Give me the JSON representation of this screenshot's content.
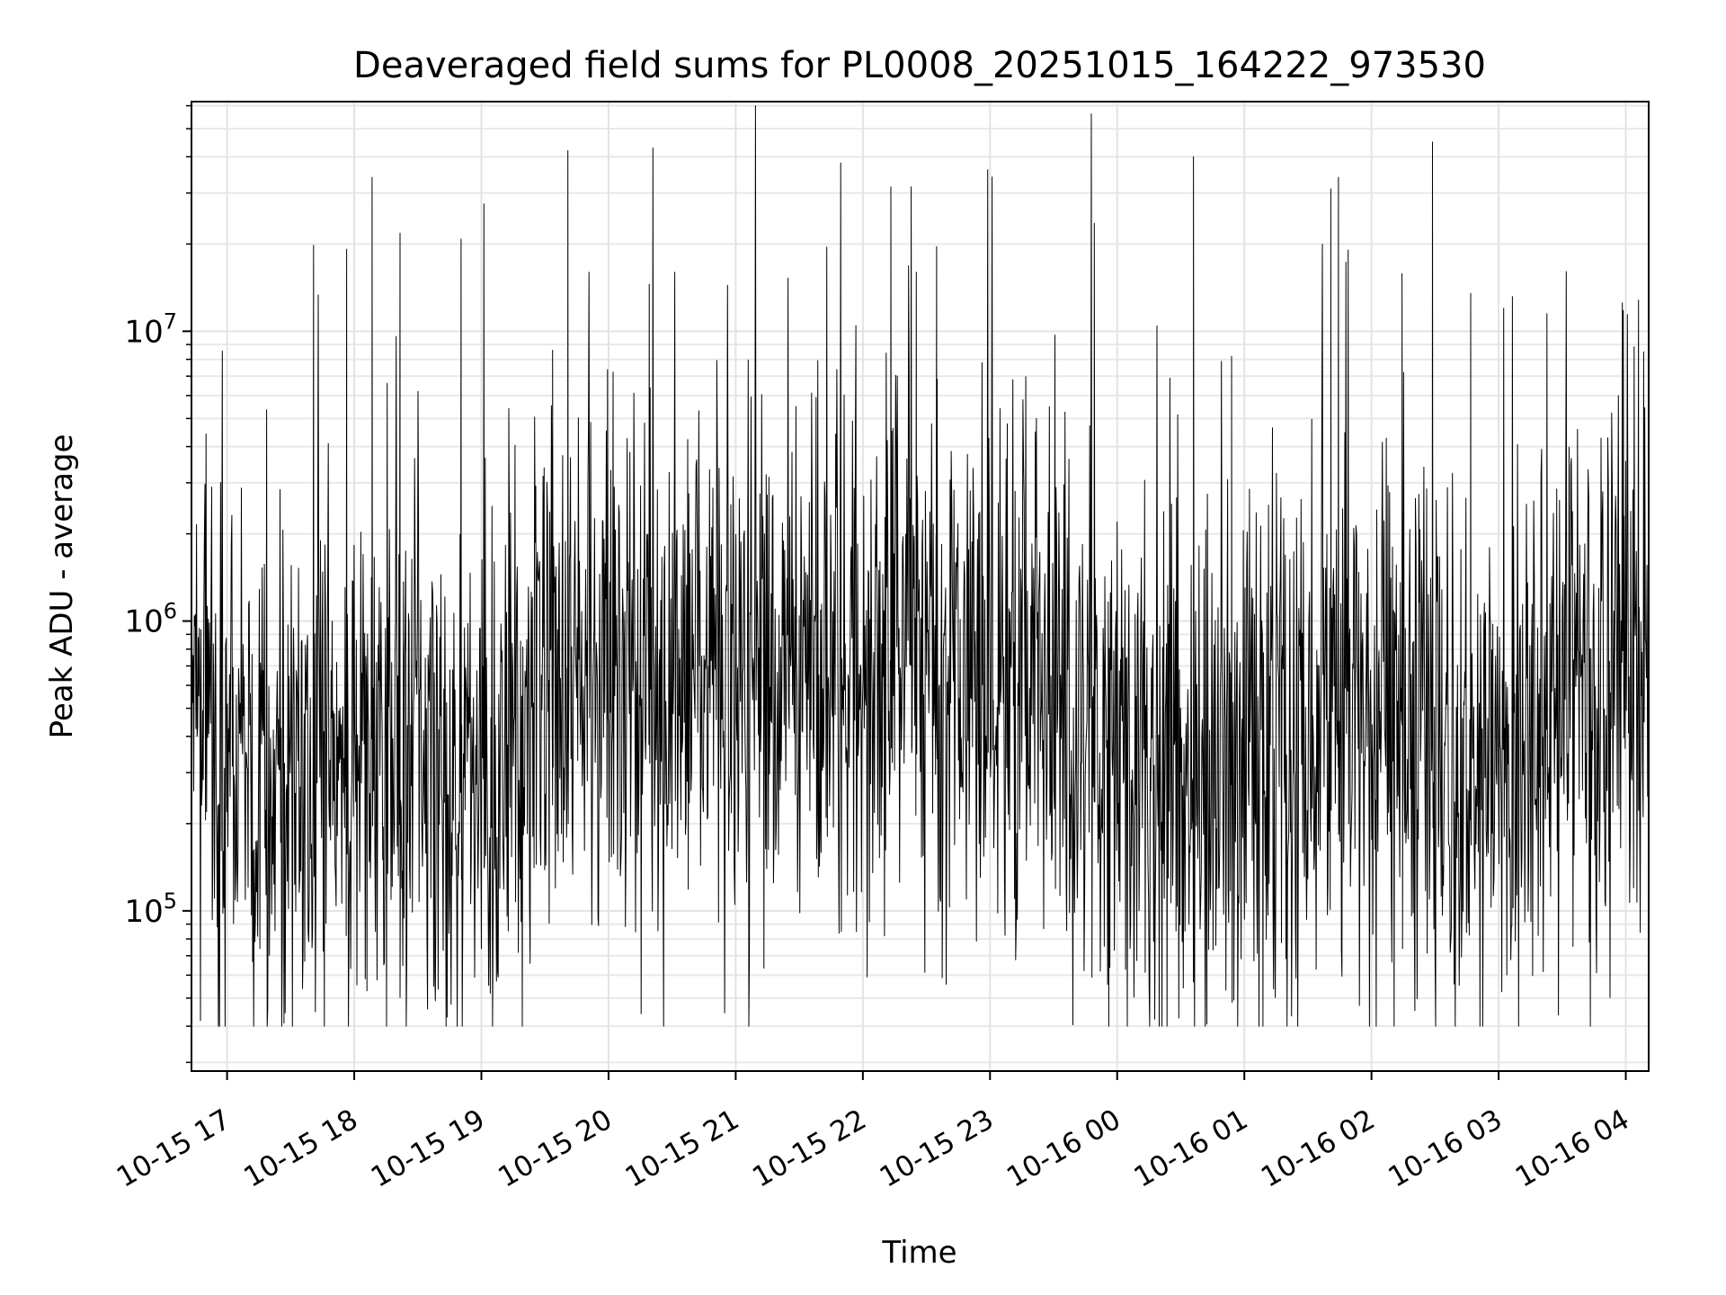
{
  "chart_data": {
    "type": "line",
    "title": "Deaveraged field sums for PL0008_20251015_164222_973530",
    "xlabel": "Time",
    "ylabel": "Peak ADU - average",
    "yscale": "log",
    "grid": "on (major and minor)",
    "line_color": "#000000",
    "xlim_hours": [
      16.72,
      28.18
    ],
    "ylim": [
      28000,
      62000000
    ],
    "x_ticks": [
      {
        "hours": 17,
        "label": "10-15 17"
      },
      {
        "hours": 18,
        "label": "10-15 18"
      },
      {
        "hours": 19,
        "label": "10-15 19"
      },
      {
        "hours": 20,
        "label": "10-15 20"
      },
      {
        "hours": 21,
        "label": "10-15 21"
      },
      {
        "hours": 22,
        "label": "10-15 22"
      },
      {
        "hours": 23,
        "label": "10-15 23"
      },
      {
        "hours": 24,
        "label": "10-16 00"
      },
      {
        "hours": 25,
        "label": "10-16 01"
      },
      {
        "hours": 26,
        "label": "10-16 02"
      },
      {
        "hours": 27,
        "label": "10-16 03"
      },
      {
        "hours": 28,
        "label": "10-16 04"
      }
    ],
    "y_ticks": [
      {
        "value": 100000,
        "base": "10",
        "exp": "5"
      },
      {
        "value": 1000000,
        "base": "10",
        "exp": "6"
      },
      {
        "value": 10000000,
        "base": "10",
        "exp": "7"
      }
    ],
    "series": [
      {
        "name": "Peak ADU - average",
        "x_hours": [
          16.72,
          17.0,
          17.3,
          17.6,
          17.9,
          18.2,
          18.5,
          18.8,
          19.1,
          19.4,
          19.7,
          20.0,
          20.3,
          20.6,
          20.9,
          21.2,
          21.5,
          21.8,
          22.1,
          22.4,
          22.7,
          23.0,
          23.3,
          23.6,
          23.9,
          24.2,
          24.5,
          24.8,
          25.1,
          25.4,
          25.7,
          26.0,
          26.3,
          26.6,
          26.9,
          27.2,
          27.5,
          27.8,
          28.1,
          28.18
        ],
        "values_median": [
          600000,
          400000,
          300000,
          250000,
          300000,
          420000,
          300000,
          250000,
          300000,
          550000,
          700000,
          700000,
          650000,
          600000,
          600000,
          650000,
          700000,
          700000,
          750000,
          700000,
          650000,
          700000,
          650000,
          550000,
          450000,
          400000,
          300000,
          260000,
          300000,
          380000,
          450000,
          500000,
          450000,
          350000,
          330000,
          400000,
          550000,
          650000,
          900000,
          500000
        ],
        "spikes": [
          {
            "hours": 17.68,
            "value": 19800000
          },
          {
            "hours": 17.94,
            "value": 19200000
          },
          {
            "hours": 18.14,
            "value": 34000000
          },
          {
            "hours": 18.36,
            "value": 21800000
          },
          {
            "hours": 18.84,
            "value": 20800000
          },
          {
            "hours": 19.02,
            "value": 27500000
          },
          {
            "hours": 19.56,
            "value": 8600000
          },
          {
            "hours": 19.68,
            "value": 42000000
          },
          {
            "hours": 20.32,
            "value": 14500000
          },
          {
            "hours": 22.22,
            "value": 31500000
          },
          {
            "hours": 22.38,
            "value": 31500000
          },
          {
            "hours": 22.42,
            "value": 16000000
          },
          {
            "hours": 22.58,
            "value": 19600000
          },
          {
            "hours": 23.82,
            "value": 23600000
          },
          {
            "hours": 24.6,
            "value": 40000000
          },
          {
            "hours": 24.9,
            "value": 8200000
          },
          {
            "hours": 25.68,
            "value": 31000000
          },
          {
            "hours": 25.74,
            "value": 34000000
          },
          {
            "hours": 26.24,
            "value": 15800000
          },
          {
            "hours": 26.48,
            "value": 45000000
          },
          {
            "hours": 26.78,
            "value": 13500000
          },
          {
            "hours": 27.04,
            "value": 12000000
          },
          {
            "hours": 27.38,
            "value": 11500000
          },
          {
            "hours": 27.98,
            "value": 11800000
          },
          {
            "hours": 28.1,
            "value": 12800000
          }
        ]
      }
    ]
  }
}
